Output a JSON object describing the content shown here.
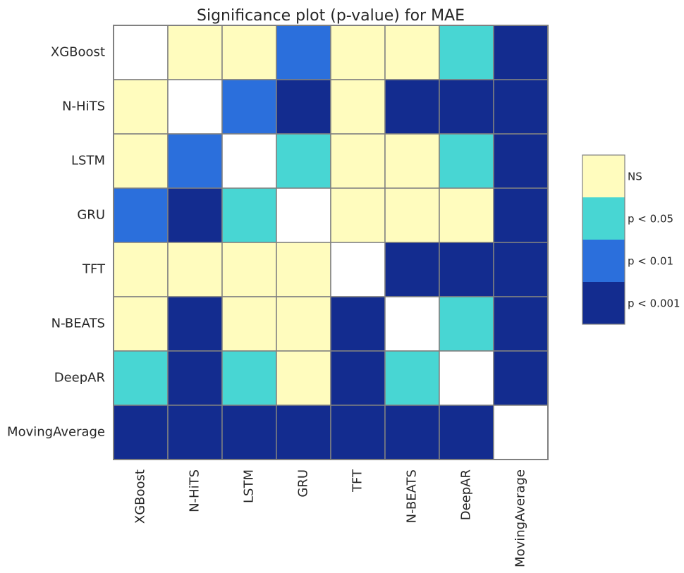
{
  "chart_data": {
    "type": "heatmap",
    "title": "Significance plot (p-value) for MAE",
    "rows": [
      "XGBoost",
      "N-HiTS",
      "LSTM",
      "GRU",
      "TFT",
      "N-BEATS",
      "DeepAR",
      "MovingAverage"
    ],
    "columns": [
      "XGBoost",
      "N-HiTS",
      "LSTM",
      "GRU",
      "TFT",
      "N-BEATS",
      "DeepAR",
      "MovingAverage"
    ],
    "matrix": [
      [
        null,
        "NS",
        "NS",
        "p < 0.01",
        "NS",
        "NS",
        "p < 0.05",
        "p < 0.001"
      ],
      [
        "NS",
        null,
        "p < 0.01",
        "p < 0.001",
        "NS",
        "p < 0.001",
        "p < 0.001",
        "p < 0.001"
      ],
      [
        "NS",
        "p < 0.01",
        null,
        "p < 0.05",
        "NS",
        "NS",
        "p < 0.05",
        "p < 0.001"
      ],
      [
        "p < 0.01",
        "p < 0.001",
        "p < 0.05",
        null,
        "NS",
        "NS",
        "NS",
        "p < 0.001"
      ],
      [
        "NS",
        "NS",
        "NS",
        "NS",
        null,
        "p < 0.001",
        "p < 0.001",
        "p < 0.001"
      ],
      [
        "NS",
        "p < 0.001",
        "NS",
        "NS",
        "p < 0.001",
        null,
        "p < 0.05",
        "p < 0.001"
      ],
      [
        "p < 0.05",
        "p < 0.001",
        "p < 0.05",
        "NS",
        "p < 0.001",
        "p < 0.05",
        null,
        "p < 0.001"
      ],
      [
        "p < 0.001",
        "p < 0.001",
        "p < 0.001",
        "p < 0.001",
        "p < 0.001",
        "p < 0.001",
        "p < 0.001",
        null
      ]
    ],
    "legend": [
      {
        "label": "NS",
        "color": "#fffcbe"
      },
      {
        "label": "p < 0.05",
        "color": "#48d6d3"
      },
      {
        "label": "p < 0.01",
        "color": "#2b6fdc"
      },
      {
        "label": "p < 0.001",
        "color": "#132c8f"
      }
    ],
    "diagonal_color": "#ffffff",
    "grid_color": "#808080",
    "legend_placement": "right"
  }
}
